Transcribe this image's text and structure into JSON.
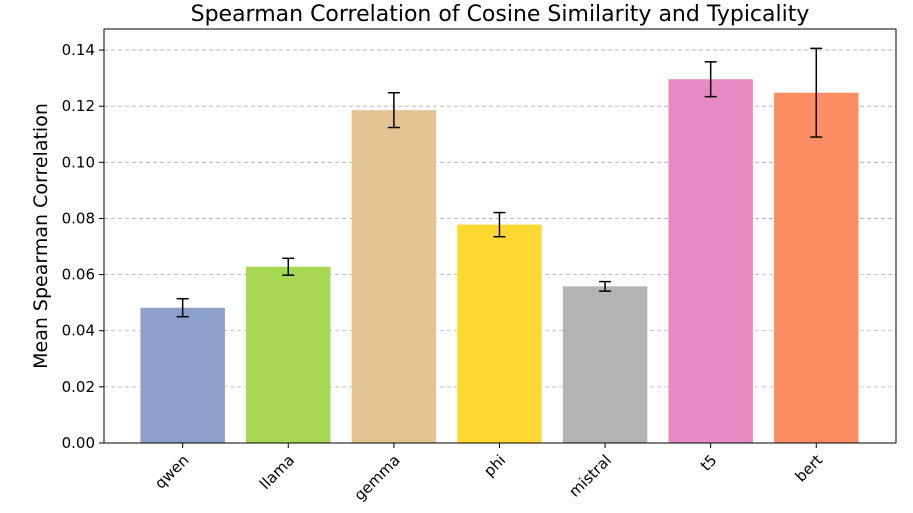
{
  "chart_data": {
    "type": "bar",
    "title": "Spearman Correlation of Cosine Similarity and Typicality",
    "xlabel": "",
    "ylabel": "Mean Spearman Correlation",
    "categories": [
      "qwen",
      "llama",
      "gemma",
      "phi",
      "mistral",
      "t5",
      "bert"
    ],
    "values": [
      0.0482,
      0.0628,
      0.1186,
      0.0778,
      0.0558,
      0.1296,
      0.1248
    ],
    "errors": [
      0.0032,
      0.003,
      0.0062,
      0.0043,
      0.0017,
      0.0062,
      0.0158
    ],
    "colors": [
      "#8da0cb",
      "#a6d854",
      "#e5c494",
      "#ffd92f",
      "#b3b3b3",
      "#e78ac3",
      "#fc8d62"
    ],
    "ylim": [
      0,
      0.1475
    ],
    "yticks": [
      "0.00",
      "0.02",
      "0.04",
      "0.06",
      "0.08",
      "0.10",
      "0.12",
      "0.14"
    ],
    "grid": "y",
    "legend": "none"
  }
}
